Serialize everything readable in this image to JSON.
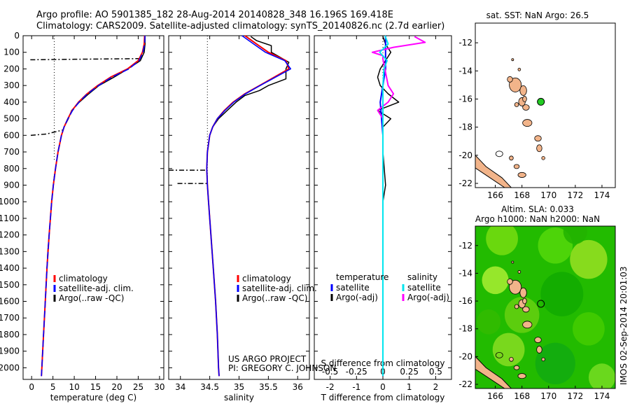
{
  "figure": {
    "title_line1": "Argo profile: AO 5901385_182 28-Aug-2014 20140828_348 16.196S 169.418E",
    "title_line2": "Climatology: CARS2009. Satellite-adjusted climatology: synTS_20140826.nc (2.7d earlier)",
    "credit_line1": "US ARGO PROJECT",
    "credit_line2": "PI: GREGORY C. JOHNSON",
    "timestamp": "IMOS 02-Sep-2014 20:01:03",
    "colors": {
      "climatology": "#ff0000",
      "satellite": "#0000ff",
      "argo": "#000000",
      "salinity_satellite": "#00e5ee",
      "salinity_argo": "#ff00ff",
      "land": "#f2b48a",
      "sla_green": "#33cc00"
    }
  },
  "chart_data": [
    {
      "type": "line",
      "panel": "temperature",
      "xlabel": "temperature (deg C)",
      "ylabel": "",
      "xlim": [
        -2,
        31
      ],
      "ylim": [
        2070,
        0
      ],
      "xticks": [
        "0",
        "5",
        "10",
        "15",
        "20",
        "25",
        "30"
      ],
      "yticks": [
        "0",
        "100",
        "200",
        "300",
        "400",
        "500",
        "600",
        "700",
        "800",
        "900",
        "1000",
        "1100",
        "1200",
        "1300",
        "1400",
        "1500",
        "1600",
        "1700",
        "1800",
        "1900",
        "2000"
      ],
      "legend": [
        "climatology",
        "satellite-adj. clim.",
        "Argo(..raw -QC)"
      ],
      "series": [
        {
          "name": "climatology",
          "depth": [
            0,
            50,
            100,
            150,
            200,
            250,
            300,
            350,
            400,
            450,
            500,
            550,
            600,
            700,
            800,
            900,
            1000,
            1200,
            1400,
            1600,
            1800,
            2000,
            2050
          ],
          "values": [
            26.5,
            26.4,
            26.0,
            25.0,
            22.5,
            18.5,
            15.5,
            13.0,
            11.0,
            9.5,
            8.5,
            7.6,
            7.0,
            6.2,
            5.6,
            5.1,
            4.7,
            4.1,
            3.6,
            3.2,
            2.8,
            2.4,
            2.3
          ]
        },
        {
          "name": "satellite-adj. clim.",
          "depth": [
            0,
            50,
            100,
            150,
            200,
            250,
            300,
            350,
            400,
            450,
            500,
            550,
            600,
            700,
            800,
            900,
            1000,
            1200,
            1400,
            1600,
            1800,
            2000,
            2050
          ],
          "values": [
            26.6,
            26.5,
            26.1,
            25.2,
            22.8,
            18.8,
            15.7,
            13.1,
            11.1,
            9.6,
            8.5,
            7.6,
            7.0,
            6.2,
            5.6,
            5.1,
            4.7,
            4.1,
            3.6,
            3.2,
            2.8,
            2.4,
            2.3
          ]
        },
        {
          "name": "Argo(..raw -QC)",
          "depth": [
            5,
            50,
            100,
            150,
            200,
            250,
            300,
            350,
            400,
            450,
            500,
            550,
            600,
            650,
            700,
            750,
            800,
            850,
            900,
            950,
            1000,
            1100,
            1200,
            1300,
            1400,
            1500,
            1600,
            1700,
            1800,
            1900,
            2000
          ],
          "values": [
            26.6,
            26.6,
            26.4,
            25.5,
            22.6,
            19.3,
            15.8,
            13.4,
            11.2,
            9.4,
            8.6,
            7.6,
            7.0,
            6.6,
            6.2,
            5.9,
            5.6,
            5.3,
            5.1,
            4.9,
            4.7,
            4.4,
            4.1,
            3.8,
            3.6,
            3.4,
            3.2,
            3.0,
            2.8,
            2.6,
            2.4
          ]
        }
      ]
    },
    {
      "type": "line",
      "panel": "salinity",
      "xlabel": "salinity",
      "ylabel": "",
      "xlim": [
        33.8,
        36.2
      ],
      "ylim": [
        2070,
        0
      ],
      "xticks": [
        "34",
        "34.5",
        "35",
        "35.5",
        "36"
      ],
      "legend": [
        "climatology",
        "satellite-adj. clim.",
        "Argo(..raw -QC)"
      ],
      "series": [
        {
          "name": "climatology",
          "depth": [
            0,
            50,
            100,
            150,
            200,
            250,
            300,
            350,
            400,
            450,
            500,
            550,
            600,
            700,
            800,
            900,
            1000,
            1200,
            1400,
            1600,
            1800,
            2000,
            2050
          ],
          "values": [
            35.1,
            35.3,
            35.5,
            35.8,
            35.85,
            35.6,
            35.35,
            35.1,
            34.9,
            34.75,
            34.63,
            34.55,
            34.5,
            34.46,
            34.45,
            34.46,
            34.48,
            34.52,
            34.56,
            34.6,
            34.63,
            34.65,
            34.66
          ]
        },
        {
          "name": "satellite-adj. clim.",
          "depth": [
            0,
            50,
            100,
            150,
            200,
            250,
            300,
            350,
            400,
            450,
            500,
            550,
            600,
            700,
            800,
            900,
            1000,
            1200,
            1400,
            1600,
            1800,
            2000,
            2050
          ],
          "values": [
            35.05,
            35.25,
            35.45,
            35.78,
            35.88,
            35.62,
            35.36,
            35.11,
            34.91,
            34.76,
            34.63,
            34.55,
            34.5,
            34.46,
            34.45,
            34.46,
            34.48,
            34.52,
            34.56,
            34.6,
            34.63,
            34.65,
            34.66
          ]
        },
        {
          "name": "Argo(..raw -QC)",
          "depth": [
            5,
            30,
            60,
            80,
            100,
            130,
            160,
            200,
            230,
            260,
            300,
            330,
            360,
            400,
            450,
            500,
            550,
            600,
            700,
            800,
            900,
            1000,
            1200,
            1400,
            1600,
            1800,
            2000
          ],
          "values": [
            35.2,
            35.3,
            35.55,
            35.55,
            35.55,
            35.7,
            35.85,
            35.8,
            35.8,
            35.8,
            35.5,
            35.35,
            35.1,
            34.95,
            34.8,
            34.65,
            34.55,
            34.5,
            34.46,
            34.45,
            34.46,
            34.48,
            34.52,
            34.56,
            34.6,
            34.63,
            34.65
          ]
        }
      ]
    },
    {
      "type": "line",
      "panel": "difference",
      "xlabel": "T difference from climatology",
      "xlabel_top": "S difference from climatology",
      "xlim": [
        -2.6,
        2.6
      ],
      "ylim": [
        2070,
        0
      ],
      "xticks": [
        "-2",
        "-1",
        "0",
        "1",
        "2"
      ],
      "xticks_top": [
        "-0.5",
        "-0.25",
        "0",
        "0.25",
        "0.5"
      ],
      "legend_headers": [
        "temperature",
        "salinity"
      ],
      "legend": [
        "satellite",
        "Argo(-adj)",
        "satellite",
        "Argo(-adj)"
      ],
      "series": [
        {
          "name": "satellite",
          "depth": [
            0,
            50,
            100,
            200,
            300,
            400,
            500,
            600,
            800,
            1000,
            1500,
            2000,
            2050
          ],
          "values": [
            0.1,
            0.1,
            0.1,
            0.1,
            0.0,
            -0.1,
            -0.05,
            0.0,
            0.0,
            0.0,
            0.0,
            0.0,
            0.0
          ]
        },
        {
          "name": "Argo(-adj)",
          "depth": [
            5,
            50,
            100,
            150,
            200,
            250,
            300,
            350,
            400,
            450,
            500,
            550,
            600,
            700,
            800,
            900,
            1000,
            1500,
            2000
          ],
          "values": [
            0.0,
            0.1,
            0.3,
            0.1,
            -0.1,
            -0.2,
            -0.1,
            0.2,
            0.6,
            -0.2,
            0.3,
            0.0,
            0.0,
            0.0,
            0.05,
            0.1,
            0.0,
            0.0,
            0.0
          ]
        },
        {
          "name": "satellite",
          "depth": [
            0,
            50,
            100,
            150,
            200,
            300,
            400,
            500,
            600,
            800,
            1000,
            1500,
            2000,
            2050
          ],
          "values": [
            0.02,
            0.05,
            -0.03,
            0.04,
            0.01,
            0.0,
            0.0,
            0.0,
            0.0,
            0.0,
            0.0,
            0.0,
            0.0,
            0.0
          ]
        },
        {
          "name": "Argo(-adj)",
          "depth": [
            5,
            40,
            70,
            100,
            120,
            140,
            300,
            350,
            400,
            450,
            500
          ],
          "values": [
            0.3,
            0.4,
            0.1,
            -0.1,
            0.0,
            0.0,
            0.05,
            0.1,
            0.05,
            -0.05,
            0.0
          ]
        }
      ]
    },
    {
      "type": "scatter",
      "panel": "sst-map",
      "title": "sat. SST: NaN Argo: 26.5",
      "xlim": [
        164.5,
        175
      ],
      "ylim": [
        -22.3,
        -10.6
      ],
      "xticks": [
        "166",
        "168",
        "170",
        "172",
        "174"
      ],
      "yticks": [
        "-12",
        "-14",
        "-16",
        "-18",
        "-20",
        "-22"
      ],
      "marker": {
        "lon": 169.418,
        "lat": -16.196
      }
    },
    {
      "type": "heatmap",
      "panel": "sla-map",
      "title_line1": "Altim. SLA: 0.033",
      "title_line2": "Argo h1000: NaN h2000: NaN",
      "xlim": [
        164.5,
        175
      ],
      "ylim": [
        -22.3,
        -10.6
      ],
      "xticks": [
        "166",
        "168",
        "170",
        "172",
        "174"
      ],
      "yticks": [
        "-12",
        "-14",
        "-16",
        "-18",
        "-20",
        "-22"
      ],
      "marker": {
        "lon": 169.418,
        "lat": -16.196
      }
    }
  ]
}
